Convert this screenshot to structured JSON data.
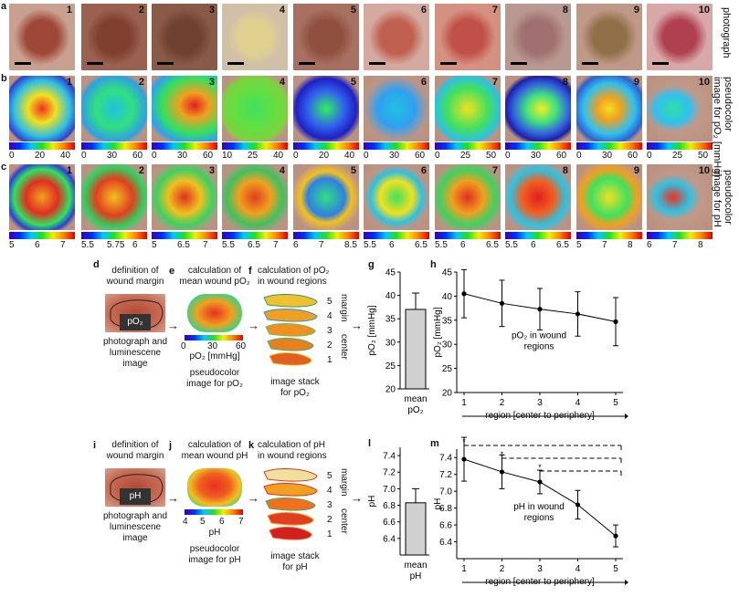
{
  "panel_letters": {
    "a": "a",
    "b": "b",
    "c": "c",
    "d": "d",
    "e": "e",
    "f": "f",
    "g": "g",
    "h": "h",
    "i": "i",
    "j": "j",
    "k": "k",
    "l": "l",
    "m": "m"
  },
  "tile_numbers": [
    "1",
    "2",
    "3",
    "4",
    "5",
    "6",
    "7",
    "8",
    "9",
    "10"
  ],
  "row_labels": {
    "a": "photograph",
    "b_line1": "pseudocolor",
    "b_line2": "image for pO₂ [mmHg]",
    "c_line1": "pseudocolor",
    "c_line2": "image for pH"
  },
  "po2_colorbar_ticks": [
    [
      "0",
      "20",
      "40"
    ],
    [
      "0",
      "30",
      "60"
    ],
    [
      "0",
      "30",
      "60"
    ],
    [
      "10",
      "25",
      "40"
    ],
    [
      "0",
      "20",
      "40"
    ],
    [
      "0",
      "30",
      "60"
    ],
    [
      "0",
      "25",
      "50"
    ],
    [
      "0",
      "30",
      "60"
    ],
    [
      "0",
      "30",
      "60"
    ],
    [
      "0",
      "25",
      "50"
    ]
  ],
  "ph_colorbar_ticks": [
    [
      "5",
      "6",
      "7"
    ],
    [
      "5.5",
      "5.75",
      "6"
    ],
    [
      "5",
      "6.5",
      "7"
    ],
    [
      "5.5",
      "6.5",
      "7"
    ],
    [
      "6",
      "7",
      "8.5"
    ],
    [
      "5.5",
      "6",
      "6.5"
    ],
    [
      "5.5",
      "6",
      "6.5"
    ],
    [
      "5.5",
      "6",
      "6.5"
    ],
    [
      "5",
      "7",
      "8"
    ],
    [
      "6",
      "7",
      "8"
    ]
  ],
  "workflow_po2": {
    "d_title": [
      "definition of",
      "wound margin"
    ],
    "e_title": [
      "calculation of",
      "mean wound pO₂"
    ],
    "f_title": [
      "calculation of pO₂",
      "in wound regions"
    ],
    "lumi_label": "pO₂",
    "d_caption": [
      "photograph and",
      "luminescene",
      "image"
    ],
    "e_scale": [
      "0",
      "30",
      "60"
    ],
    "e_unit": "pO₂ [mmHg]",
    "e_caption": [
      "pseudocolor",
      "image for pO₂"
    ],
    "f_caption": [
      "image stack",
      "for pO₂"
    ],
    "stack_numbers": [
      "5",
      "4",
      "3",
      "2",
      "1"
    ],
    "stack_margin": "margin",
    "stack_center": "center"
  },
  "workflow_ph": {
    "i_title": [
      "definition of",
      "wound margin"
    ],
    "j_title": [
      "calculation of",
      "mean wound pH"
    ],
    "k_title": [
      "calculation of pH",
      "in wound regions"
    ],
    "lumi_label": "pH",
    "i_caption": [
      "photograph and",
      "luminescene",
      "image"
    ],
    "j_scale": [
      "4",
      "5",
      "6",
      "7"
    ],
    "j_unit": "pH",
    "j_caption": [
      "pseudocolor",
      "image for pH"
    ],
    "k_caption": [
      "image stack",
      "for pH"
    ],
    "stack_numbers": [
      "5",
      "4",
      "3",
      "2",
      "1"
    ],
    "stack_margin": "margin",
    "stack_center": "center"
  },
  "chart_data": [
    {
      "panel": "g",
      "type": "bar",
      "categories": [
        "mean pO₂"
      ],
      "values": [
        37
      ],
      "error": [
        3.5
      ],
      "ylabel": "pO₂ [mmHg]",
      "ylim": [
        20,
        45
      ],
      "yticks": [
        "20",
        "25",
        "30",
        "35",
        "40",
        "45"
      ],
      "xlabel_lines": [
        "mean",
        "pO₂"
      ]
    },
    {
      "panel": "h",
      "type": "line",
      "x": [
        1,
        2,
        3,
        4,
        5
      ],
      "values": [
        40.5,
        38.5,
        37.3,
        36.3,
        34.7
      ],
      "error": [
        5,
        4.8,
        4.3,
        4.6,
        5
      ],
      "ylabel": "pO₂ [mmHg]",
      "xlabel": "region [center to periphery]",
      "annotation": [
        "pO₂ in wound",
        "regions"
      ],
      "ylim": [
        20,
        45
      ],
      "yticks": [
        "20",
        "25",
        "30",
        "35",
        "40",
        "45"
      ],
      "xticks": [
        "1",
        "2",
        "3",
        "4",
        "5"
      ]
    },
    {
      "panel": "l",
      "type": "bar",
      "categories": [
        "mean pH"
      ],
      "values": [
        6.83
      ],
      "error": [
        0.17
      ],
      "ylabel": "pH",
      "ylim": [
        6.2,
        7.5
      ],
      "yticks": [
        "6.4",
        "6.6",
        "6.8",
        "7.0",
        "7.2",
        "7.4"
      ],
      "xlabel_lines": [
        "mean",
        "pH"
      ]
    },
    {
      "panel": "m",
      "type": "line",
      "x": [
        1,
        2,
        3,
        4,
        5
      ],
      "values": [
        7.38,
        7.23,
        7.11,
        6.84,
        6.47
      ],
      "error": [
        0.26,
        0.2,
        0.14,
        0.17,
        0.13
      ],
      "ylabel": "pH",
      "xlabel": "region [center to periphery]",
      "annotation": [
        "pH in wound",
        "regions"
      ],
      "ylim": [
        6.2,
        7.5
      ],
      "yticks": [
        "6.4",
        "6.6",
        "6.8",
        "7.0",
        "7.2",
        "7.4"
      ],
      "xticks": [
        "1",
        "2",
        "3",
        "4",
        "5"
      ],
      "significance_marker": "*"
    }
  ]
}
